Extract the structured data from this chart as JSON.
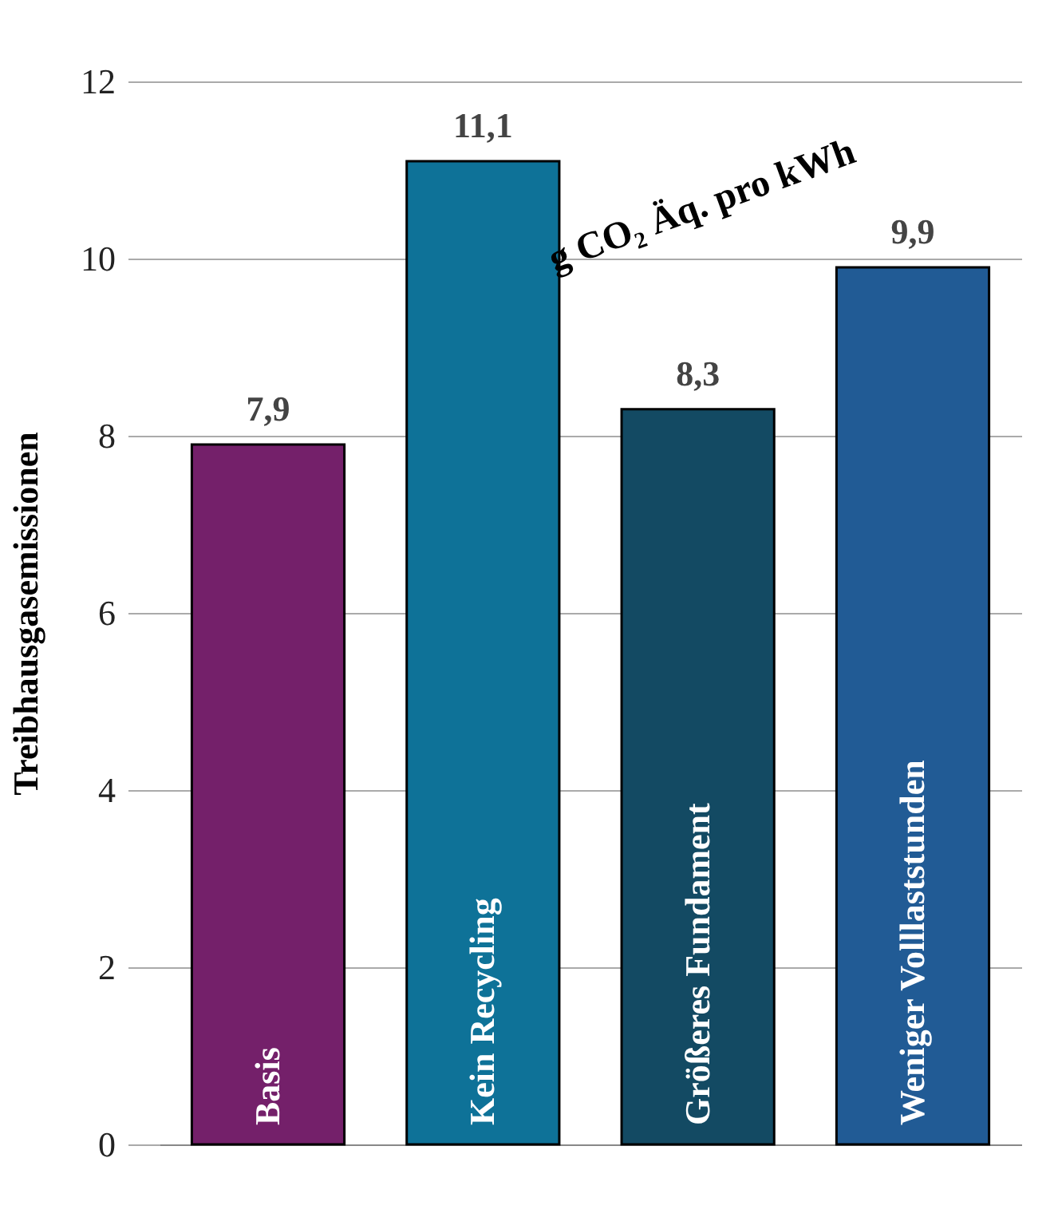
{
  "chart_data": {
    "type": "bar",
    "ylabel": "Treibhausgasemissionen",
    "categories": [
      "Basis",
      "Kein Recycling",
      "Größeres Fundament",
      "Weniger Volllaststunden"
    ],
    "values": [
      7.9,
      11.1,
      8.3,
      9.9
    ],
    "colors": [
      "#74206a",
      "#0e7298",
      "#134a63",
      "#215b95"
    ],
    "value_labels": [
      "7,9",
      "11,1",
      "8,3",
      "9,9"
    ],
    "ylim": [
      0,
      12
    ],
    "yticks": [
      0,
      2,
      4,
      6,
      8,
      10,
      12
    ],
    "grid": "y",
    "tick_labels": "y",
    "annotations": [
      "g CO₂ Äq. pro kWh"
    ]
  }
}
